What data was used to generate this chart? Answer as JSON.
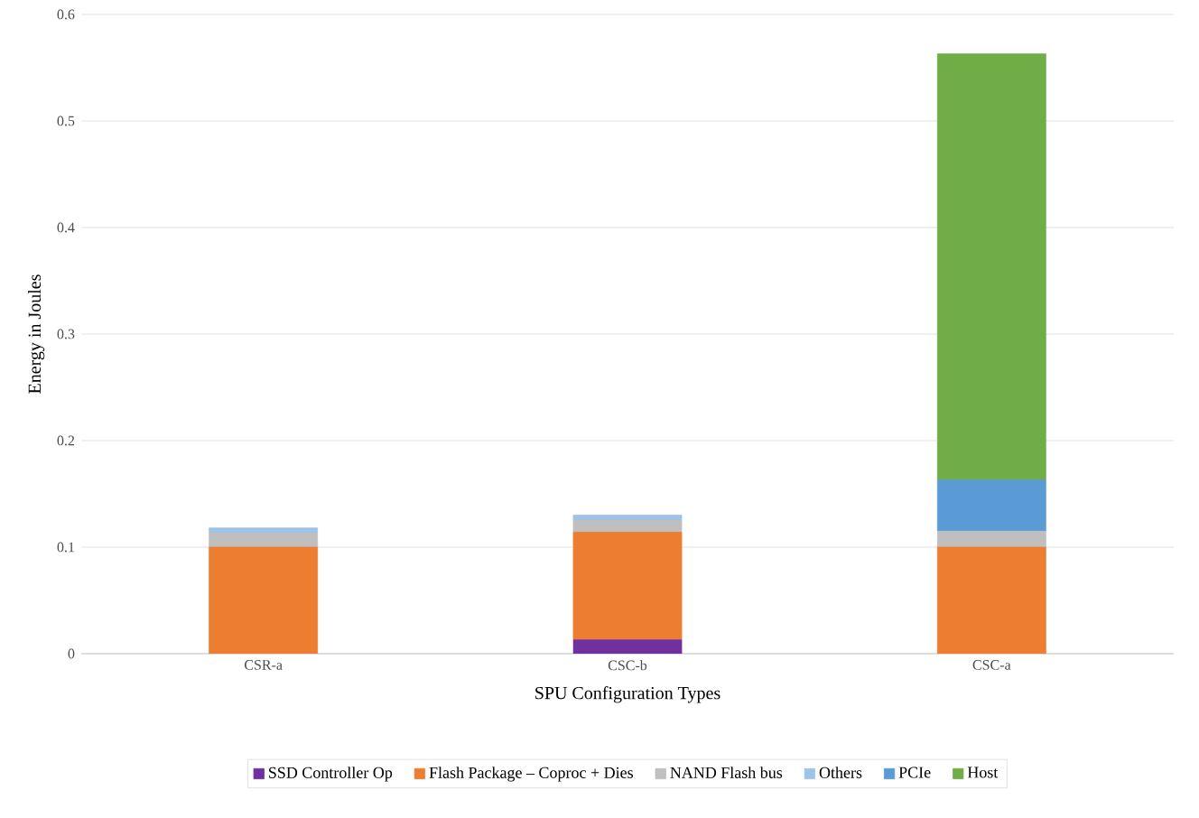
{
  "chart_data": {
    "type": "bar",
    "stacked": true,
    "xlabel": "SPU Configuration Types",
    "ylabel": "Energy in Joules",
    "categories": [
      "CSR-a",
      "CSC-b",
      "CSC-a"
    ],
    "series": [
      {
        "name": "SSD Controller Op",
        "color": "#7030a0",
        "values": [
          0,
          0.013,
          0
        ]
      },
      {
        "name": "Flash Package – Coproc + Dies",
        "color": "#ed7d31",
        "values": [
          0.1,
          0.101,
          0.1
        ]
      },
      {
        "name": "NAND Flash bus",
        "color": "#bfbfbf",
        "values": [
          0.013,
          0.011,
          0.015
        ]
      },
      {
        "name": "Others",
        "color": "#9dc3e6",
        "values": [
          0.005,
          0.005,
          0
        ]
      },
      {
        "name": "PCIe",
        "color": "#5b9bd5",
        "values": [
          0,
          0,
          0.048
        ]
      },
      {
        "name": "Host",
        "color": "#70ad47",
        "values": [
          0,
          0,
          0.4
        ]
      }
    ],
    "ylim": [
      0,
      0.6
    ],
    "yticks": [
      0,
      0.1,
      0.2,
      0.3,
      0.4,
      0.5,
      0.6
    ],
    "grid": "y",
    "legend": "bottom"
  }
}
